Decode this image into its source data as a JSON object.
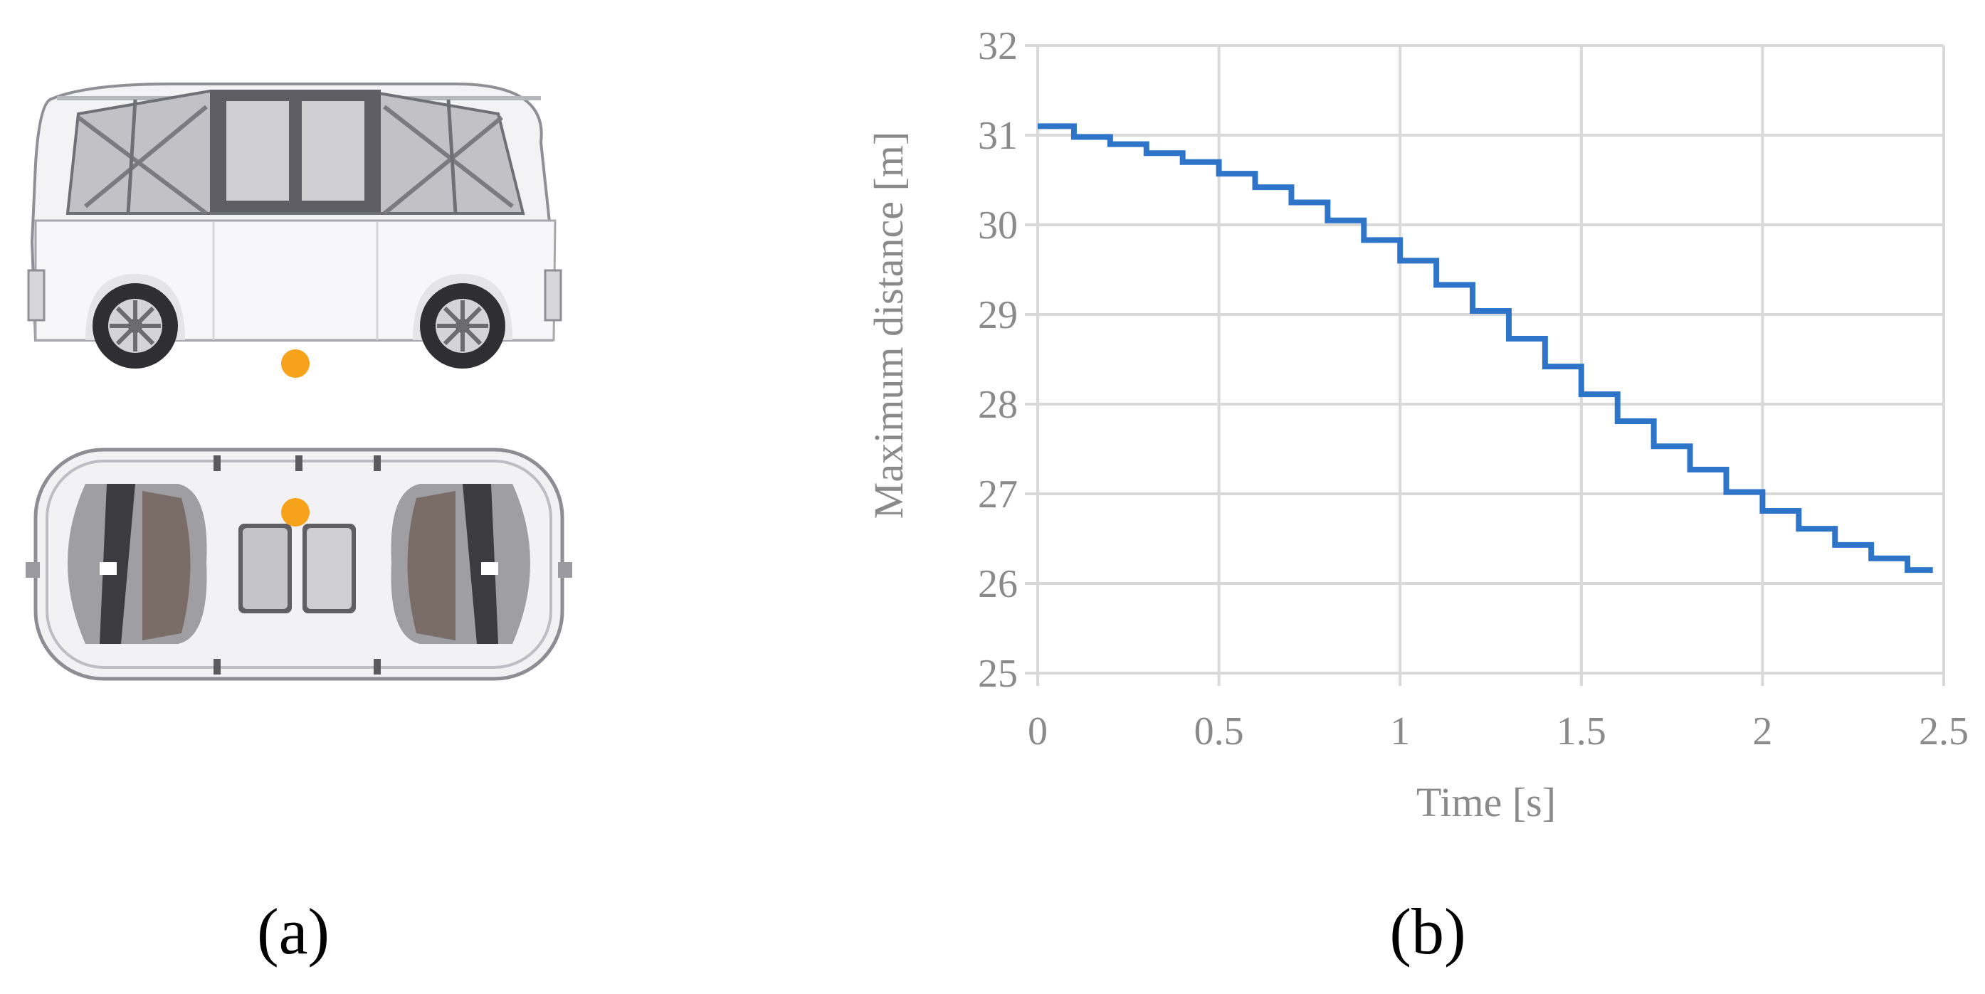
{
  "panels": {
    "left_label": "(a)",
    "right_label": "(b)"
  },
  "colors": {
    "series": "#2e75c9",
    "grid": "#d9d9d9",
    "axis_text": "#8a8a8a",
    "sensor_dot": "#f7a21b"
  },
  "vehicle": {
    "side_view_icon": "shuttle-side-view",
    "top_view_icon": "shuttle-top-view",
    "sensor_marker_icon": "sensor-position-dot"
  },
  "chart_data": {
    "type": "line",
    "title": "",
    "xlabel": "Time [s]",
    "ylabel": "Maximum distance [m]",
    "xlim": [
      0,
      2.5
    ],
    "ylim": [
      25,
      32
    ],
    "xticks": [
      "0",
      "0.5",
      "1",
      "1.5",
      "2",
      "2.5"
    ],
    "yticks": [
      "25",
      "26",
      "27",
      "28",
      "29",
      "30",
      "31",
      "32"
    ],
    "grid": true,
    "legend": "none",
    "series": [
      {
        "style": "step",
        "x": [
          0,
          0.1,
          0.2,
          0.3,
          0.4,
          0.5,
          0.6,
          0.7,
          0.8,
          0.9,
          1.0,
          1.1,
          1.2,
          1.3,
          1.4,
          1.5,
          1.6,
          1.7,
          1.8,
          1.9,
          2.0,
          2.1,
          2.2,
          2.3,
          2.4,
          2.47
        ],
        "y": [
          31.1,
          30.98,
          30.9,
          30.8,
          30.7,
          30.57,
          30.42,
          30.25,
          30.05,
          29.83,
          29.6,
          29.33,
          29.04,
          28.73,
          28.42,
          28.11,
          27.81,
          27.53,
          27.27,
          27.02,
          26.81,
          26.61,
          26.43,
          26.28,
          26.15,
          26.15
        ]
      }
    ]
  }
}
